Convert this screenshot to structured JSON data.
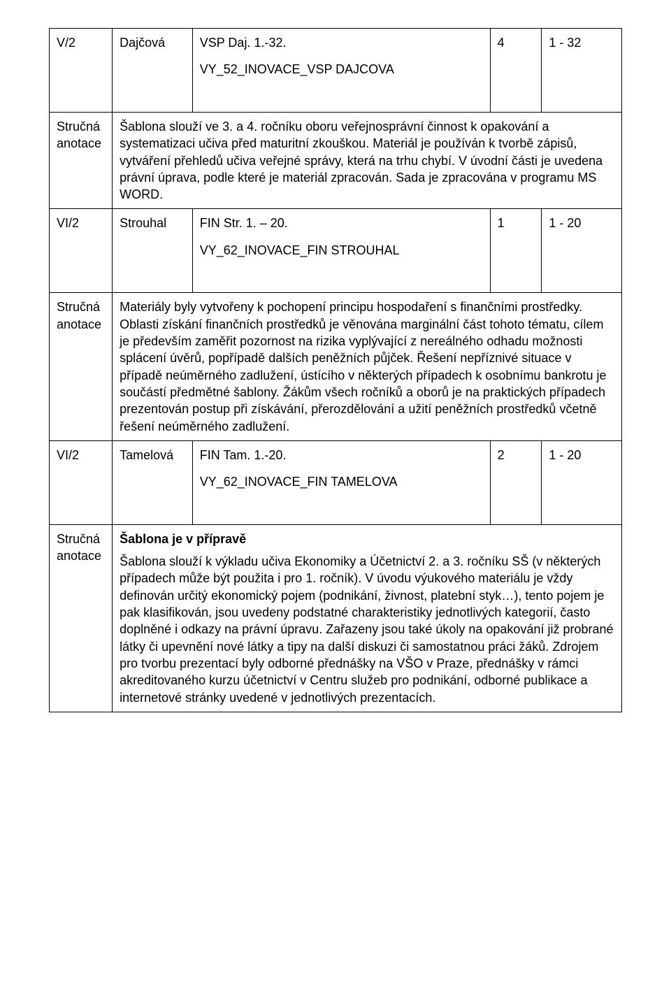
{
  "colors": {
    "text": "#000000",
    "border": "#000000",
    "background": "#ffffff"
  },
  "typography": {
    "fontsize_pt": 14,
    "line_height": 1.35,
    "font_family": "Arial"
  },
  "rows": [
    {
      "kind": "header",
      "col1": "V/2",
      "col2": "Dajčová",
      "col3_line1": "VSP Daj. 1.-32.",
      "col3_code": "VY_52_INOVACE_VSP DAJCOVA",
      "col4": "4",
      "col5": "1 - 32"
    },
    {
      "kind": "annotation",
      "label1": "Stručná",
      "label2": "anotace",
      "text": "Šablona slouží ve 3. a 4. ročníku oboru veřejnosprávní činnost k opakování a systematizaci učiva před maturitní zkouškou. Materiál je používán k tvorbě zápisů, vytváření přehledů učiva veřejné správy, která na trhu chybí. V úvodní části je uvedena právní úprava, podle které je materiál zpracován. Sada je zpracována v programu MS WORD."
    },
    {
      "kind": "header",
      "col1": "VI/2",
      "col2": "Strouhal",
      "col3_line1": "FIN  Str. 1. – 20.",
      "col3_code": "VY_62_INOVACE_FIN STROUHAL",
      "col4": "1",
      "col5": "1 - 20"
    },
    {
      "kind": "annotation",
      "label1": "Stručná",
      "label2": "anotace",
      "text": "Materiály byly vytvořeny  k pochopení principu hospodaření s finančními prostředky. Oblasti získání finančních prostředků je věnována marginální část tohoto tématu, cílem je především zaměřit pozornost na rizika vyplývající z nereálného odhadu možnosti splácení úvěrů, popřípadě dalších peněžních půjček. Řešení nepříznivé situace v případě neúměrného zadlužení, ústícího v některých případech k osobnímu bankrotu je součástí předmětné šablony. Žákům všech ročníků a oborů je na praktických případech prezentován postup při získávání, přerozdělování a užití peněžních prostředků včetně řešení neúměrného zadlužení."
    },
    {
      "kind": "header",
      "col1": "VI/2",
      "col2": "Tamelová",
      "col3_line1": "FIN Tam. 1.-20.",
      "col3_code": "VY_62_INOVACE_FIN TAMELOVA",
      "col4": "2",
      "col5": "1 - 20"
    },
    {
      "kind": "annotation_bold",
      "label1": "Stručná",
      "label2": "anotace",
      "bold_line": "Šablona je v přípravě",
      "text": "Šablona slouží k výkladu učiva Ekonomiky a Účetnictví 2. a 3. ročníku SŠ (v některých případech může být použita i pro 1. ročník). V úvodu výukového materiálu je vždy definován určitý ekonomický pojem (podnikání, živnost, platební styk…), tento pojem je pak klasifikován, jsou uvedeny podstatné charakteristiky jednotlivých kategorií, často doplněné i odkazy na právní úpravu. Zařazeny jsou také úkoly na opakování již probrané látky či upevnění nové látky a tipy na další diskuzi či samostatnou práci žáků. Zdrojem pro tvorbu prezentací byly odborné přednášky na VŠO v Praze, přednášky v rámci akreditovaného kurzu účetnictví v Centru služeb pro podnikání, odborné publikace a internetové stránky uvedené v jednotlivých prezentacích."
    }
  ]
}
